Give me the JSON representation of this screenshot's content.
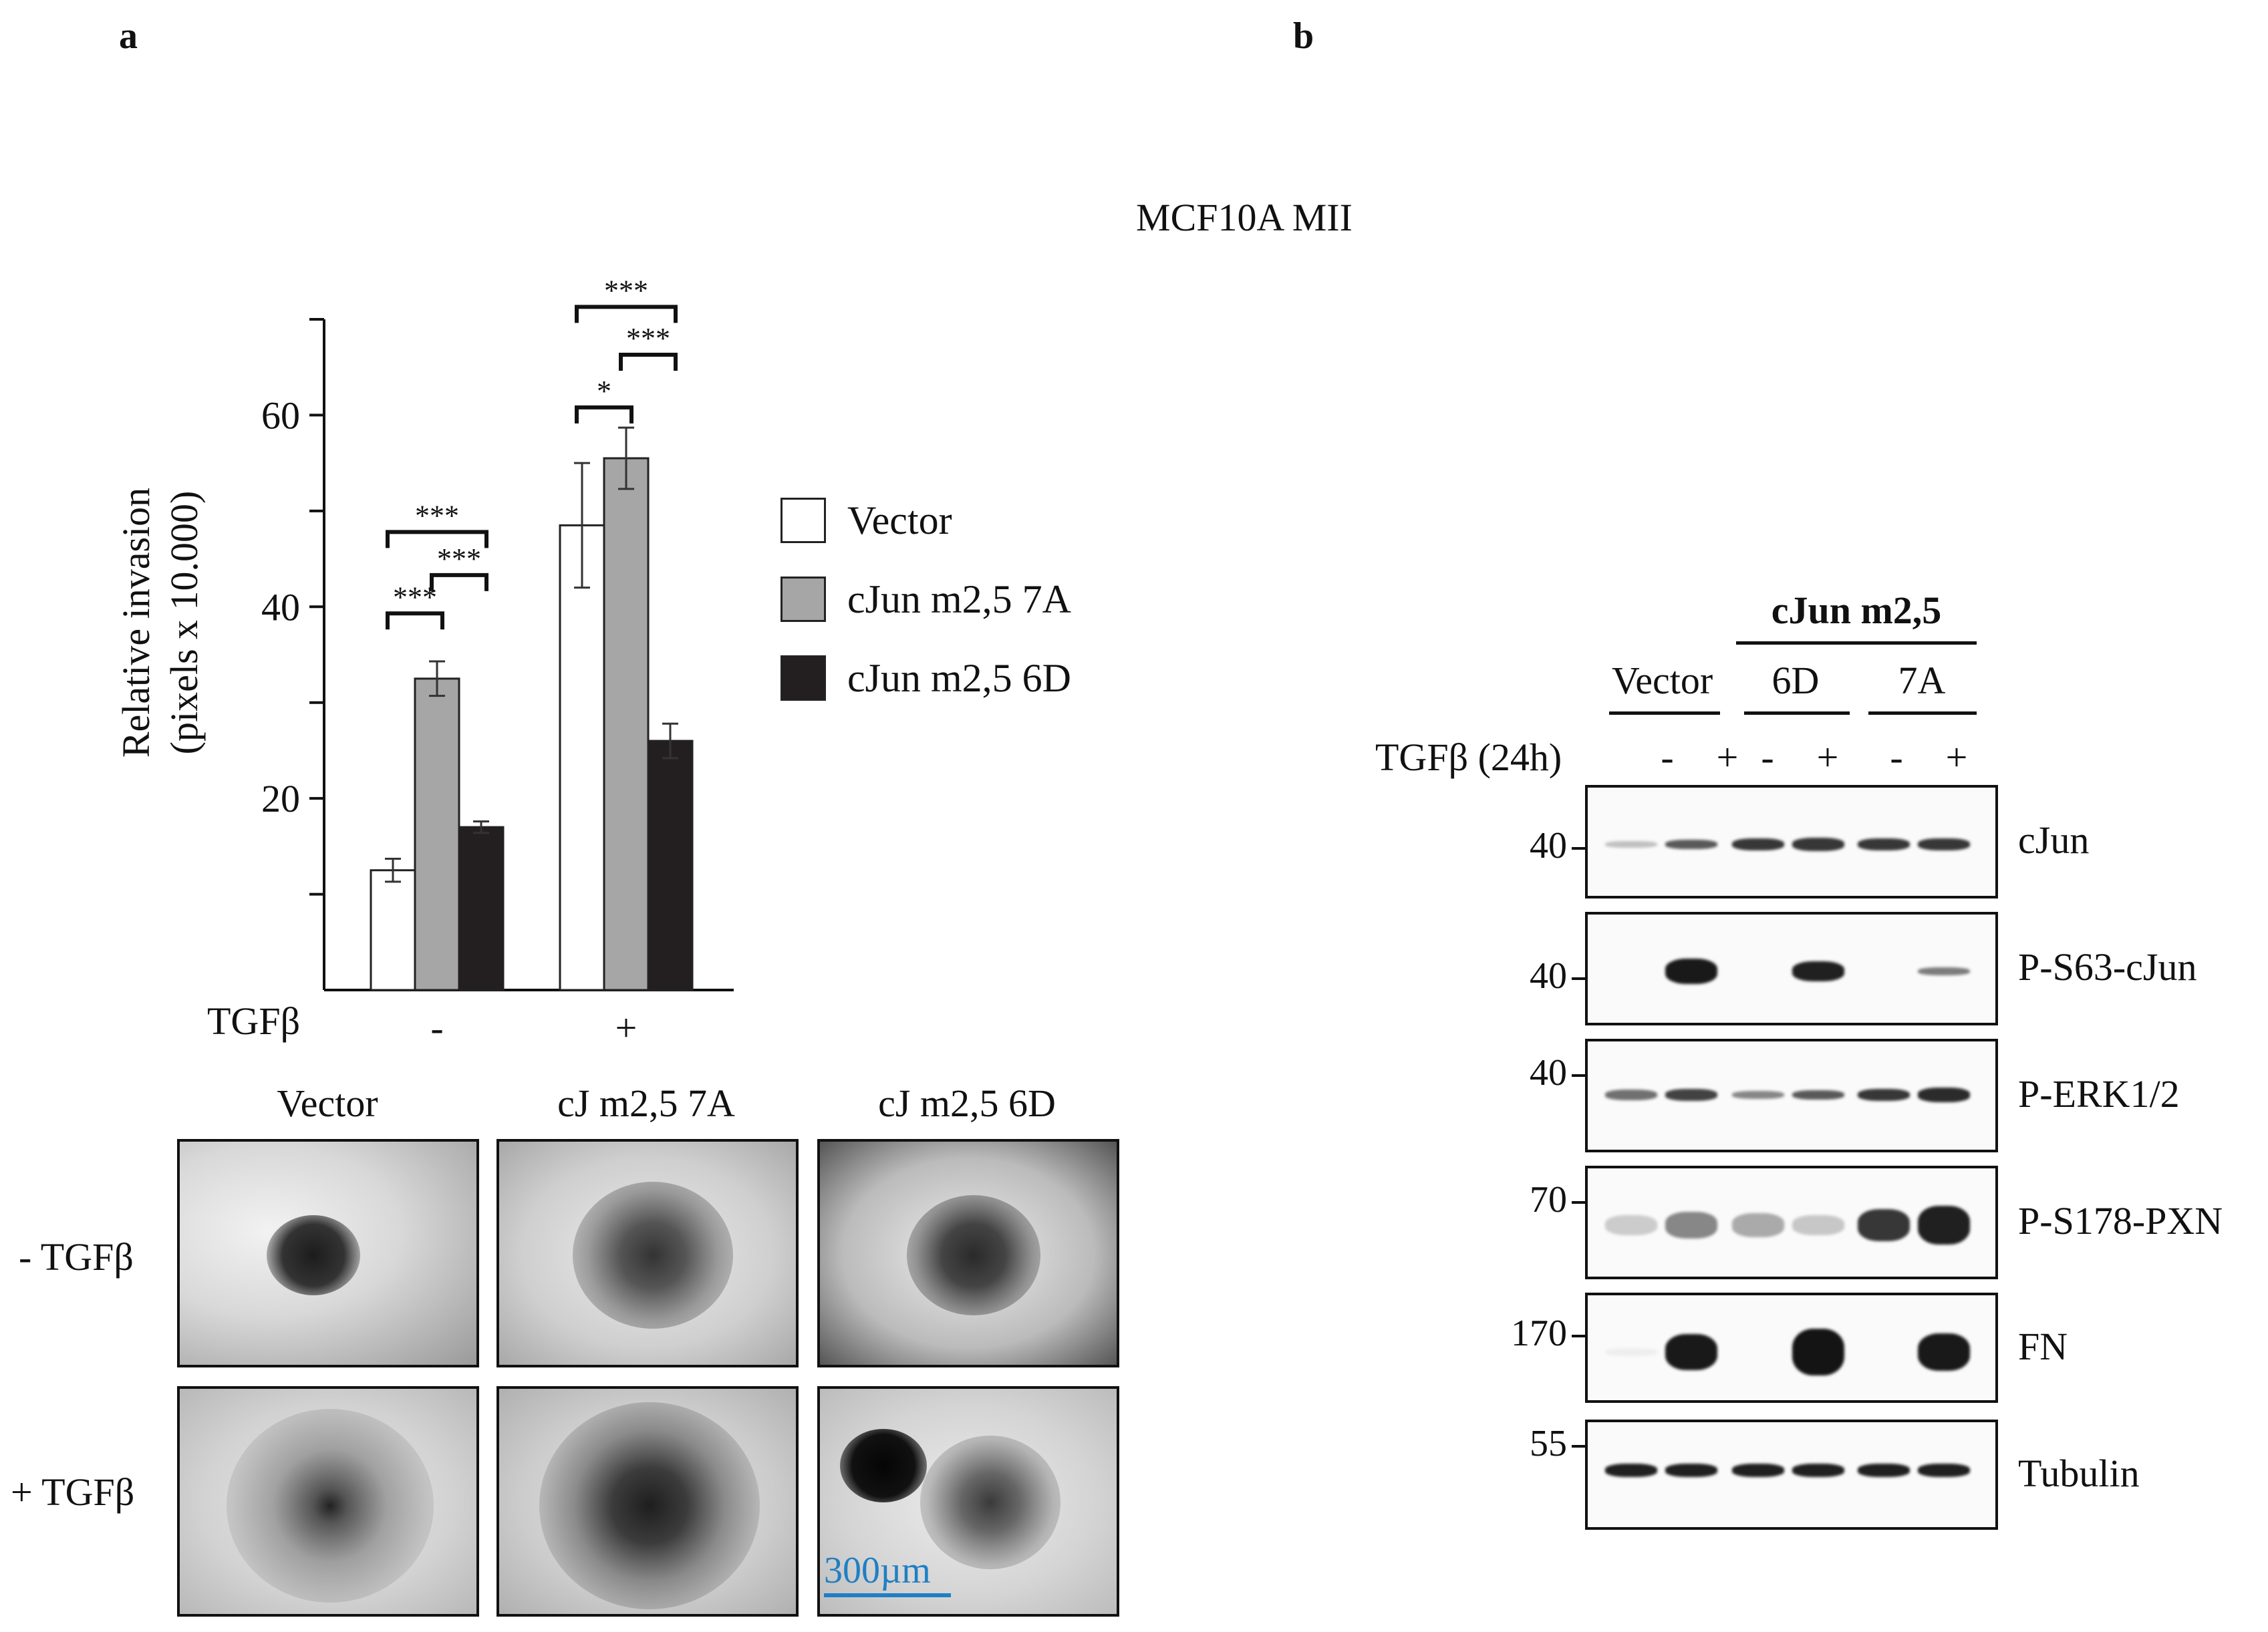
{
  "panel_a": {
    "letter": "a",
    "chart_data": {
      "type": "bar",
      "categories": [
        "-",
        "+"
      ],
      "category_axis_label": "TGFβ",
      "ylabel_line1": "Relative invasion",
      "ylabel_line2": "(pixels x 10.000)",
      "ylim": [
        0,
        70
      ],
      "yticks": [
        20,
        40,
        60
      ],
      "series": [
        {
          "name": "Vector",
          "color": "#ffffff",
          "values": [
            12.5,
            48.5
          ],
          "errors": [
            1.2,
            6.5
          ]
        },
        {
          "name": "cJun m2,5 7A",
          "color": "#a6a6a6",
          "values": [
            32.5,
            55.5
          ],
          "errors": [
            1.8,
            3.2
          ]
        },
        {
          "name": "cJun m2,5 6D",
          "color": "#231f20",
          "values": [
            17,
            26
          ],
          "errors": [
            0.6,
            1.8
          ]
        }
      ],
      "significance": [
        {
          "group": 0,
          "from": 0,
          "to": 1,
          "label": "***"
        },
        {
          "group": 0,
          "from": 1,
          "to": 2,
          "label": "***"
        },
        {
          "group": 0,
          "from": 0,
          "to": 2,
          "label": "***"
        },
        {
          "group": 1,
          "from": 0,
          "to": 1,
          "label": "*"
        },
        {
          "group": 1,
          "from": 1,
          "to": 2,
          "label": "***"
        },
        {
          "group": 1,
          "from": 0,
          "to": 2,
          "label": "***"
        }
      ],
      "legend_position": "right"
    },
    "images": {
      "column_labels": [
        "Vector",
        "cJ m2,5 7A",
        "cJ m2,5 6D"
      ],
      "row_labels": [
        "- TGFβ",
        "+ TGFβ"
      ],
      "scale_bar": "300µm"
    }
  },
  "panel_b": {
    "letter": "b",
    "title": "MCF10A MII",
    "group_header": "cJun m2,5",
    "lane_groups": [
      "Vector",
      "6D",
      "7A"
    ],
    "treatment_label": "TGFβ (24h)",
    "treatment_signs": [
      "-",
      "+",
      "-",
      "+",
      "-",
      "+"
    ],
    "blots": [
      {
        "name": "cJun",
        "mw": "40"
      },
      {
        "name": "P-S63-cJun",
        "mw": "40"
      },
      {
        "name": "P-ERK1/2",
        "mw": "40"
      },
      {
        "name": "P-S178-PXN",
        "mw": "70"
      },
      {
        "name": "FN",
        "mw": "170"
      },
      {
        "name": "Tubulin",
        "mw": "55"
      }
    ]
  }
}
